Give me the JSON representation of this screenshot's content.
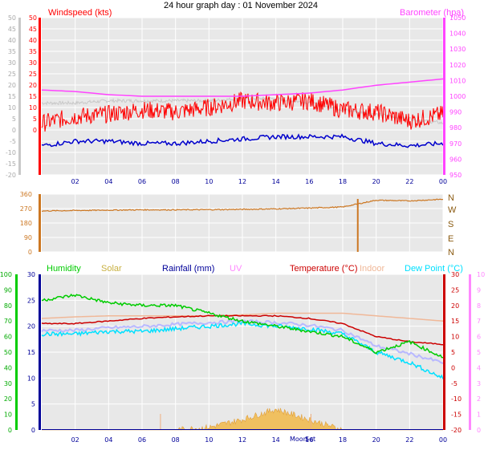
{
  "title": "24 hour graph day : 01 November 2024",
  "colors": {
    "wind": "#ff0000",
    "gust": "#c8c8c8",
    "avg": "#0000cc",
    "baro": "#ff44ff",
    "dir": "#cc7722",
    "humidity": "#00cc00",
    "solar": "#f0c060",
    "uv": "#ff88ff",
    "rain": "#000099",
    "temp": "#cc0000",
    "indoor": "#f0b898",
    "dew": "#00e0ff",
    "app": "#b8b8ff",
    "plotbg": "#e8e8e8"
  },
  "x_ticks": [
    "02",
    "04",
    "06",
    "08",
    "10",
    "12",
    "14",
    "16",
    "18",
    "20",
    "22",
    "00"
  ],
  "sun_labels": {
    "moon": "Moon",
    "sun": "Set"
  },
  "chart_data": [
    {
      "type": "line",
      "title": "24 hour graph day : 01 November 2024",
      "left_label": "Windspeed (kts)",
      "right_label": "Barometer (hpa)",
      "x": [
        "00",
        "02",
        "04",
        "06",
        "08",
        "10",
        "12",
        "14",
        "16",
        "18",
        "20",
        "22",
        "00"
      ],
      "ylim": [
        -20,
        50
      ],
      "y_ticks": [
        "-20",
        "-15",
        "-10",
        "-5",
        "0",
        "5",
        "10",
        "15",
        "20",
        "25",
        "30",
        "35",
        "40",
        "45",
        "50"
      ],
      "y_ticks_inner": [
        "0",
        "5",
        "10",
        "15",
        "20",
        "25",
        "30",
        "35",
        "40",
        "45",
        "50"
      ],
      "y2lim": [
        950,
        1050
      ],
      "y2_ticks": [
        "950",
        "960",
        "970",
        "980",
        "990",
        "1000",
        "1010",
        "1020",
        "1030",
        "1040",
        "1050"
      ],
      "series": [
        {
          "name": "Gust",
          "values": [
            12,
            12,
            13,
            13,
            13,
            13,
            14,
            14,
            12,
            9,
            7,
            5,
            3
          ]
        },
        {
          "name": "Windspeed",
          "values": [
            3,
            6,
            7,
            9,
            8,
            10,
            13,
            12,
            13,
            9,
            8,
            4,
            7
          ]
        },
        {
          "name": "Average",
          "values": [
            -7,
            -5,
            -5,
            -6,
            -6,
            -5,
            -4,
            -3,
            -3,
            -3,
            -6,
            -7,
            -6
          ]
        },
        {
          "name": "Barometer",
          "values": [
            1004,
            1003,
            1001,
            1000,
            1000,
            1000,
            1000,
            1001,
            1002,
            1004,
            1007,
            1009,
            1011
          ]
        }
      ]
    },
    {
      "type": "line",
      "ylim": [
        0,
        360
      ],
      "y_ticks": [
        "0",
        "90",
        "180",
        "270",
        "360"
      ],
      "cardinals": [
        "N",
        "W",
        "S",
        "E",
        "N"
      ],
      "x": [
        "00",
        "02",
        "04",
        "06",
        "08",
        "10",
        "12",
        "14",
        "16",
        "18",
        "20",
        "22",
        "00"
      ],
      "series": [
        {
          "name": "Wind Direction",
          "values": [
            255,
            258,
            260,
            262,
            262,
            263,
            265,
            268,
            273,
            280,
            322,
            318,
            328
          ]
        }
      ]
    },
    {
      "type": "area",
      "legend": [
        "Humidity",
        "Solar",
        "Rainfall (mm)",
        "UV",
        "Temperature (°C)",
        "Indoor",
        "Dew Point (°C)"
      ],
      "ylim": [
        0,
        30
      ],
      "y_ticks": [
        "0",
        "5",
        "10",
        "15",
        "20",
        "25",
        "30"
      ],
      "humidity_ticks": [
        "0",
        "10",
        "20",
        "30",
        "40",
        "50",
        "60",
        "70",
        "80",
        "90",
        "100"
      ],
      "temp_ticks": [
        "-20",
        "-15",
        "-10",
        "-5",
        "0",
        "5",
        "10",
        "15",
        "20",
        "25",
        "30"
      ],
      "uv_ticks": [
        "0",
        "1",
        "2",
        "3",
        "4",
        "5",
        "6",
        "7",
        "8",
        "9",
        "10"
      ],
      "x": [
        "00",
        "02",
        "04",
        "06",
        "08",
        "10",
        "12",
        "14",
        "16",
        "18",
        "20",
        "22",
        "00"
      ],
      "series": [
        {
          "name": "Humidity",
          "values": [
            25,
            26,
            24.5,
            24,
            24,
            22.5,
            21,
            20,
            19,
            18,
            15,
            17,
            14
          ]
        },
        {
          "name": "Temperature (°C)",
          "values": [
            20.5,
            20.5,
            21,
            21.5,
            21.8,
            22,
            22,
            22,
            21.5,
            20.5,
            18,
            17,
            16.5
          ]
        },
        {
          "name": "Indoor",
          "values": [
            21.5,
            21.8,
            22,
            22,
            22,
            22,
            22.2,
            22.5,
            22.5,
            22.5,
            22,
            21.5,
            21
          ]
        },
        {
          "name": "Dew Point (°C)",
          "values": [
            18.5,
            18.5,
            19,
            19,
            19.5,
            20,
            20.5,
            20,
            19.5,
            18.5,
            15,
            13,
            10
          ]
        },
        {
          "name": "Solar",
          "values": [
            0,
            0,
            0,
            0,
            0,
            0.5,
            2,
            4,
            2,
            0,
            0,
            0,
            0
          ]
        },
        {
          "name": "Rainfall (mm)",
          "values": [
            0,
            0,
            0,
            0,
            0,
            0,
            0,
            0,
            0,
            0,
            0,
            0,
            0
          ]
        }
      ]
    }
  ]
}
